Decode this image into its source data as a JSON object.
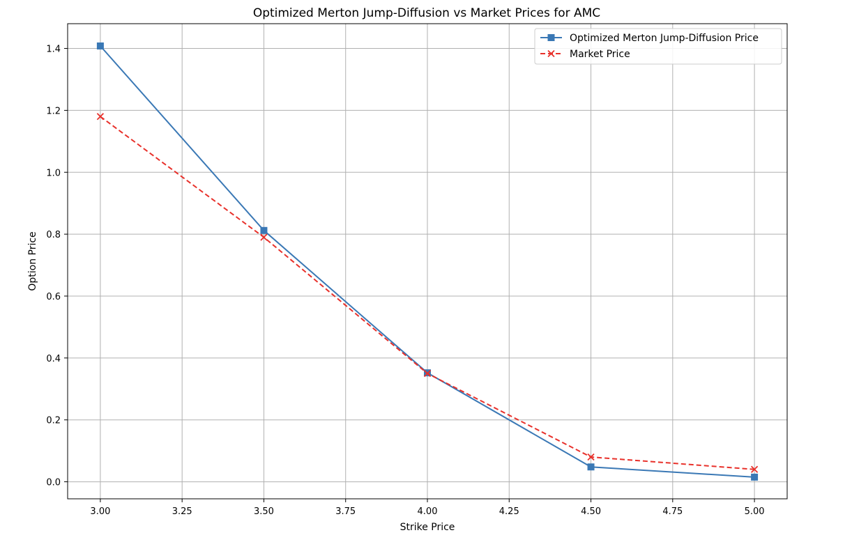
{
  "chart_data": {
    "type": "line",
    "title": "Optimized Merton Jump-Diffusion vs Market Prices for AMC",
    "xlabel": "Strike Price",
    "ylabel": "Option Price",
    "x": [
      3.0,
      3.5,
      4.0,
      4.5,
      5.0
    ],
    "xlim": [
      2.9,
      5.1
    ],
    "ylim": [
      -0.055,
      1.48
    ],
    "xticks": [
      "3.00",
      "3.25",
      "3.50",
      "3.75",
      "4.00",
      "4.25",
      "4.50",
      "4.75",
      "5.00"
    ],
    "xtick_values": [
      3.0,
      3.25,
      3.5,
      3.75,
      4.0,
      4.25,
      4.5,
      4.75,
      5.0
    ],
    "yticks": [
      "0.0",
      "0.2",
      "0.4",
      "0.6",
      "0.8",
      "1.0",
      "1.2",
      "1.4"
    ],
    "ytick_values": [
      0.0,
      0.2,
      0.4,
      0.6,
      0.8,
      1.0,
      1.2,
      1.4
    ],
    "grid": true,
    "legend_position": "top-right",
    "series": [
      {
        "name": "Optimized Merton Jump-Diffusion Price",
        "values": [
          1.408,
          0.812,
          0.352,
          0.048,
          0.015
        ],
        "color": "#3a78b5",
        "line_style": "solid",
        "marker": "square"
      },
      {
        "name": "Market Price",
        "values": [
          1.18,
          0.79,
          0.35,
          0.08,
          0.04
        ],
        "color": "#e8302a",
        "line_style": "dashed",
        "marker": "x"
      }
    ]
  }
}
